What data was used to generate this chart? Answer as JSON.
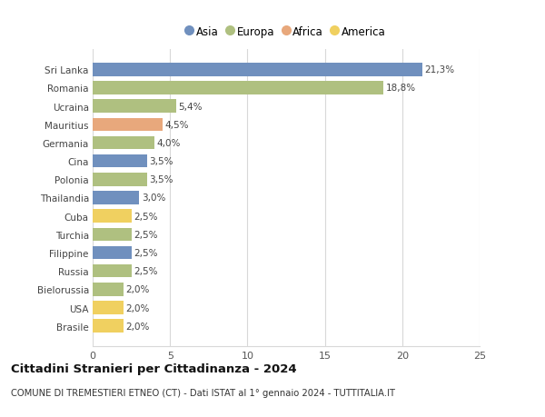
{
  "countries": [
    "Sri Lanka",
    "Romania",
    "Ucraina",
    "Mauritius",
    "Germania",
    "Cina",
    "Polonia",
    "Thailandia",
    "Cuba",
    "Turchia",
    "Filippine",
    "Russia",
    "Bielorussia",
    "USA",
    "Brasile"
  ],
  "values": [
    21.3,
    18.8,
    5.4,
    4.5,
    4.0,
    3.5,
    3.5,
    3.0,
    2.5,
    2.5,
    2.5,
    2.5,
    2.0,
    2.0,
    2.0
  ],
  "labels": [
    "21,3%",
    "18,8%",
    "5,4%",
    "4,5%",
    "4,0%",
    "3,5%",
    "3,5%",
    "3,0%",
    "2,5%",
    "2,5%",
    "2,5%",
    "2,5%",
    "2,0%",
    "2,0%",
    "2,0%"
  ],
  "continents": [
    "Asia",
    "Europa",
    "Europa",
    "Africa",
    "Europa",
    "Asia",
    "Europa",
    "Asia",
    "America",
    "Europa",
    "Asia",
    "Europa",
    "Europa",
    "America",
    "America"
  ],
  "colors": {
    "Asia": "#7090be",
    "Europa": "#afc080",
    "Africa": "#e8a87c",
    "America": "#f0d060"
  },
  "legend_order": [
    "Asia",
    "Europa",
    "Africa",
    "America"
  ],
  "title": "Cittadini Stranieri per Cittadinanza - 2024",
  "subtitle": "COMUNE DI TREMESTIERI ETNEO (CT) - Dati ISTAT al 1° gennaio 2024 - TUTTITALIA.IT",
  "xlim": [
    0,
    25
  ],
  "xticks": [
    0,
    5,
    10,
    15,
    20,
    25
  ],
  "bg_color": "#ffffff",
  "grid_color": "#d8d8d8",
  "bar_height": 0.72
}
